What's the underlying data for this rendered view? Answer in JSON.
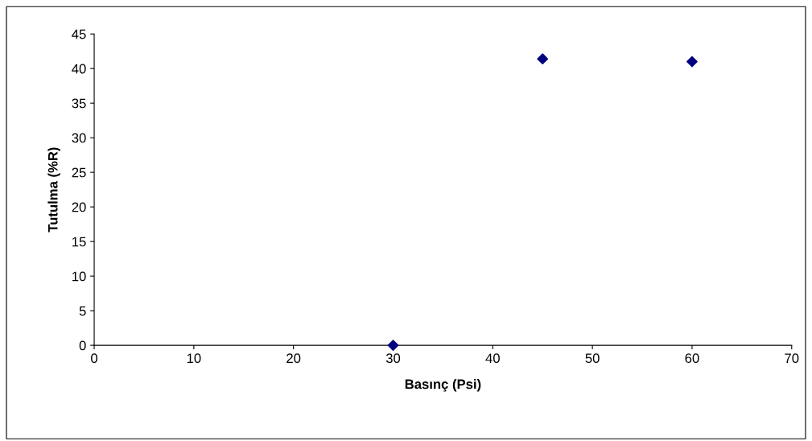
{
  "chart_data": {
    "type": "scatter",
    "xlabel": "Basınç (Psi)",
    "ylabel": "Tutulma (%R)",
    "x": [
      30,
      45,
      60
    ],
    "series": [
      {
        "color": "#000080",
        "values": [
          0,
          41.4,
          41
        ]
      }
    ],
    "xlim": [
      0,
      70
    ],
    "xticks": [
      0,
      10,
      20,
      30,
      40,
      50,
      60,
      70
    ],
    "ylim": [
      0,
      45
    ],
    "yticks": [
      0,
      5,
      10,
      15,
      20,
      25,
      30,
      35,
      40,
      45
    ],
    "marker": "diamond",
    "grid": false,
    "legend": false
  }
}
